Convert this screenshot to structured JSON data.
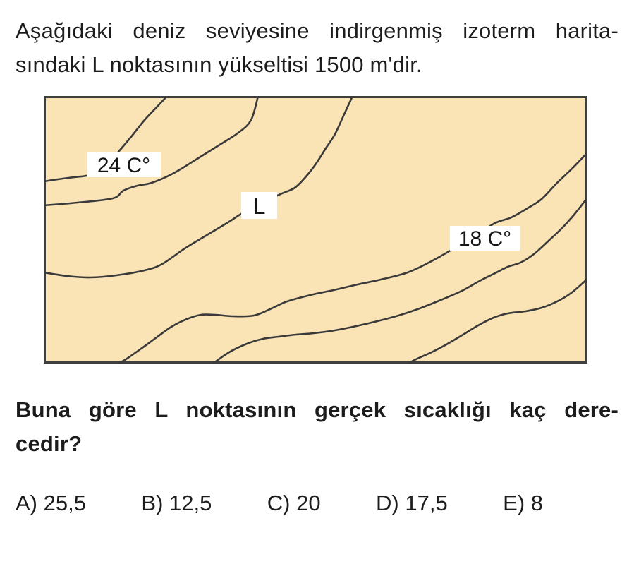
{
  "question": {
    "intro_lines": [
      "Aşağıdaki deniz seviyesine indirgenmiş izoterm harita-",
      "sındaki L noktasının yükseltisi 1500 m'dir."
    ],
    "prompt_lines": [
      "Buna göre L noktasının gerçek sıcaklığı kaç dere-",
      "cedir?"
    ]
  },
  "map": {
    "background_color": "#FAE3B5",
    "border_color": "#3F3F3F",
    "line_color": "#3A3A3A",
    "labels": [
      {
        "text": "24 C°"
      },
      {
        "text": "L"
      },
      {
        "text": "18 C°"
      }
    ],
    "curves": [
      {
        "name": "isotherm-24-line",
        "points": [
          [
            175,
            0
          ],
          [
            160,
            16
          ],
          [
            143,
            34
          ],
          [
            123,
            59
          ],
          [
            106,
            79
          ],
          [
            92,
            95
          ],
          [
            78,
            108
          ],
          [
            60,
            113
          ],
          [
            43,
            115
          ],
          [
            20,
            118
          ],
          [
            0,
            121
          ]
        ]
      },
      {
        "name": "isotherm-line-2",
        "points": [
          [
            0,
            155
          ],
          [
            48,
            151
          ],
          [
            98,
            145
          ],
          [
            113,
            134
          ],
          [
            133,
            127
          ],
          [
            153,
            123
          ],
          [
            183,
            110
          ],
          [
            216,
            90
          ],
          [
            248,
            70
          ],
          [
            276,
            52
          ],
          [
            294,
            34
          ],
          [
            304,
            0
          ]
        ]
      },
      {
        "name": "isotherm-line-L",
        "points": [
          [
            438,
            0
          ],
          [
            426,
            26
          ],
          [
            413,
            54
          ],
          [
            400,
            74
          ],
          [
            386,
            96
          ],
          [
            372,
            114
          ],
          [
            356,
            130
          ],
          [
            338,
            138
          ],
          [
            308,
            152
          ],
          [
            280,
            167
          ],
          [
            263,
            178
          ],
          [
            233,
            196
          ],
          [
            200,
            216
          ],
          [
            168,
            238
          ],
          [
            143,
            247
          ],
          [
            103,
            254
          ],
          [
            66,
            257
          ],
          [
            33,
            255
          ],
          [
            0,
            250
          ]
        ]
      },
      {
        "name": "isotherm-18-line",
        "points": [
          [
            771,
            80
          ],
          [
            750,
            102
          ],
          [
            728,
            123
          ],
          [
            706,
            146
          ],
          [
            686,
            159
          ],
          [
            663,
            172
          ],
          [
            640,
            180
          ],
          [
            610,
            199
          ],
          [
            580,
            217
          ],
          [
            548,
            235
          ],
          [
            516,
            250
          ],
          [
            478,
            260
          ],
          [
            445,
            267
          ],
          [
            411,
            275
          ],
          [
            378,
            282
          ],
          [
            345,
            291
          ],
          [
            323,
            301
          ],
          [
            298,
            311
          ],
          [
            268,
            312
          ],
          [
            243,
            310
          ],
          [
            223,
            310
          ],
          [
            203,
            316
          ],
          [
            181,
            327
          ],
          [
            160,
            342
          ],
          [
            138,
            358
          ],
          [
            118,
            372
          ],
          [
            106,
            379
          ]
        ]
      },
      {
        "name": "isotherm-line-5",
        "points": [
          [
            771,
            144
          ],
          [
            753,
            167
          ],
          [
            735,
            187
          ],
          [
            716,
            205
          ],
          [
            695,
            224
          ],
          [
            676,
            236
          ],
          [
            658,
            242
          ],
          [
            638,
            252
          ],
          [
            618,
            262
          ],
          [
            593,
            276
          ],
          [
            563,
            289
          ],
          [
            533,
            301
          ],
          [
            503,
            311
          ],
          [
            473,
            319
          ],
          [
            443,
            326
          ],
          [
            413,
            332
          ],
          [
            383,
            336
          ],
          [
            358,
            338
          ],
          [
            333,
            341
          ],
          [
            311,
            344
          ],
          [
            288,
            351
          ],
          [
            263,
            363
          ],
          [
            240,
            379
          ]
        ]
      },
      {
        "name": "isotherm-line-6",
        "points": [
          [
            771,
            259
          ],
          [
            748,
            279
          ],
          [
            728,
            291
          ],
          [
            706,
            300
          ],
          [
            683,
            305
          ],
          [
            658,
            308
          ],
          [
            638,
            314
          ],
          [
            616,
            325
          ],
          [
            593,
            339
          ],
          [
            571,
            352
          ],
          [
            550,
            363
          ],
          [
            530,
            372
          ],
          [
            516,
            379
          ]
        ]
      }
    ]
  },
  "options": [
    {
      "text": "A) 25,5"
    },
    {
      "text": "B) 12,5"
    },
    {
      "text": "C) 20"
    },
    {
      "text": "D) 17,5"
    },
    {
      "text": "E) 8"
    }
  ]
}
